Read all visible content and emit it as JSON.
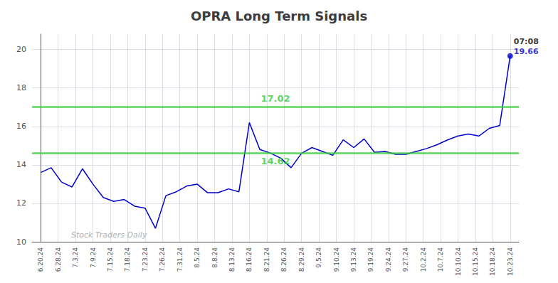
{
  "chart_data": {
    "type": "line",
    "title": "OPRA Long Term Signals",
    "x": [
      0,
      0.6,
      1.2,
      1.8,
      2.4,
      3,
      3.6,
      4.2,
      4.8,
      5.4,
      6,
      6.6,
      7.2,
      7.8,
      8.4,
      9,
      9.6,
      10.2,
      10.8,
      11.4,
      12,
      12.6,
      13.2,
      13.8,
      14.4,
      15,
      15.6,
      16.2,
      16.8,
      17.4,
      18,
      18.6,
      19.2,
      19.8,
      20.4,
      21,
      21.6,
      22.2,
      22.8,
      23.4,
      24,
      24.6,
      25.2,
      25.8,
      26.4,
      27
    ],
    "values": [
      13.6,
      13.85,
      13.1,
      12.85,
      13.8,
      13.0,
      12.3,
      12.1,
      12.2,
      11.85,
      11.75,
      10.7,
      12.4,
      12.6,
      12.9,
      13.0,
      12.55,
      12.55,
      12.75,
      12.6,
      16.2,
      14.8,
      14.62,
      14.35,
      13.85,
      14.6,
      14.9,
      14.7,
      14.5,
      15.3,
      14.9,
      15.35,
      14.65,
      14.7,
      14.55,
      14.55,
      14.7,
      14.85,
      15.05,
      15.3,
      15.5,
      15.6,
      15.5,
      15.9,
      16.05,
      19.66
    ],
    "color": "#0000cc",
    "xlim": [
      -0.5,
      27.5
    ],
    "xticks": [
      {
        "value": 0,
        "label": "6.20.24"
      },
      {
        "value": 1,
        "label": "6.28.24"
      },
      {
        "value": 2,
        "label": "7.3.24"
      },
      {
        "value": 3,
        "label": "7.9.24"
      },
      {
        "value": 4,
        "label": "7.15.24"
      },
      {
        "value": 5,
        "label": "7.18.24"
      },
      {
        "value": 6,
        "label": "7.23.24"
      },
      {
        "value": 7,
        "label": "7.26.24"
      },
      {
        "value": 8,
        "label": "7.31.24"
      },
      {
        "value": 9,
        "label": "8.5.24"
      },
      {
        "value": 10,
        "label": "8.8.24"
      },
      {
        "value": 11,
        "label": "8.13.24"
      },
      {
        "value": 12,
        "label": "8.16.24"
      },
      {
        "value": 13,
        "label": "8.21.24"
      },
      {
        "value": 14,
        "label": "8.26.24"
      },
      {
        "value": 15,
        "label": "8.29.24"
      },
      {
        "value": 16,
        "label": "9.5.24"
      },
      {
        "value": 17,
        "label": "9.10.24"
      },
      {
        "value": 18,
        "label": "9.13.24"
      },
      {
        "value": 19,
        "label": "9.19.24"
      },
      {
        "value": 20,
        "label": "9.24.24"
      },
      {
        "value": 21,
        "label": "9.27.24"
      },
      {
        "value": 22,
        "label": "10.2.24"
      },
      {
        "value": 23,
        "label": "10.7.24"
      },
      {
        "value": 24,
        "label": "10.10.24"
      },
      {
        "value": 25,
        "label": "10.15.24"
      },
      {
        "value": 26,
        "label": "10.18.24"
      },
      {
        "value": 27,
        "label": "10.23.24"
      }
    ],
    "ylim": [
      10,
      20.8
    ],
    "yticks": [
      10,
      12,
      14,
      16,
      18,
      20
    ],
    "grid": true,
    "marker": "last",
    "hlines": [
      {
        "y": 17.02,
        "label": "17.02",
        "color": "#33cc33"
      },
      {
        "y": 14.62,
        "label": "14.62",
        "color": "#33cc33"
      }
    ],
    "annotations": [
      {
        "text": "07:08",
        "x": 27,
        "y": 19.66,
        "color": "#000000"
      },
      {
        "text": "19.66",
        "x": 27,
        "y": 19.66,
        "color": "#0000cc"
      }
    ],
    "watermark": {
      "text": "Stock Traders Daily",
      "color": "#b0b0b0"
    }
  }
}
